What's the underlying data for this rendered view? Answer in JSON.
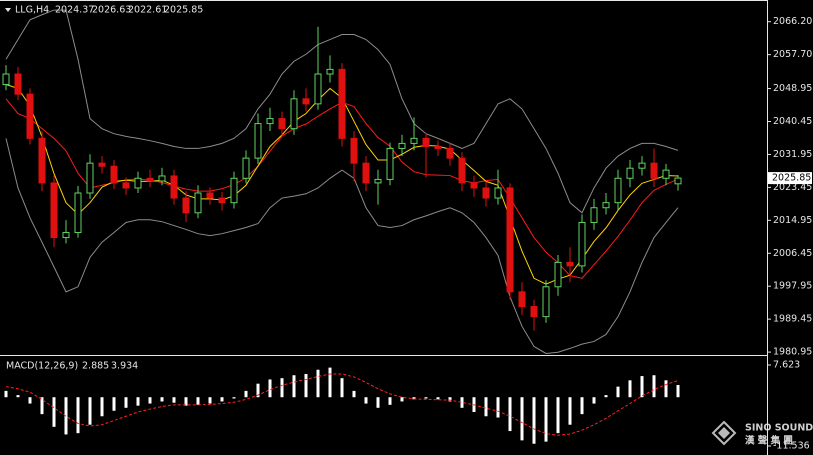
{
  "header": {
    "symbol": "LLG,H4"
  },
  "watermark": {
    "brand": "SINO SOUND",
    "chinese": "漢 聲 集 團"
  },
  "chart_data": [
    {
      "type": "candlestick",
      "up_color": "#5fd35f",
      "down_color": "#e01010",
      "open": [
        2050.0,
        2052.7,
        2047.5,
        2036.1,
        2024.6,
        2010.5,
        2011.8,
        2022.0,
        2029.7,
        2028.9,
        2024.6,
        2023.3,
        2025.8,
        2025.1,
        2026.4,
        2020.7,
        2016.9,
        2022.0,
        2020.7,
        2019.5,
        2025.8,
        2031.0,
        2039.9,
        2041.2,
        2038.6,
        2046.3,
        2045.0,
        2052.7,
        2053.9,
        2036.1,
        2029.7,
        2024.6,
        2025.5,
        2033.5,
        2034.8,
        2036.1,
        2034.0,
        2033.5,
        2031.0,
        2024.6,
        2023.3,
        2020.7,
        2023.3,
        1996.5,
        1992.7,
        1990.1,
        1997.8,
        2004.1,
        2003.2,
        2014.4,
        2018.2,
        2019.5,
        2025.8,
        2028.4,
        2029.7,
        2025.8,
        2024.37
      ],
      "high": [
        2055.0,
        2054.5,
        2049.0,
        2038.0,
        2026.5,
        2015.0,
        2023.8,
        2032.0,
        2031.5,
        2030.5,
        2026.0,
        2027.5,
        2028.0,
        2028.5,
        2028.0,
        2022.5,
        2024.0,
        2023.5,
        2022.3,
        2027.5,
        2033.0,
        2042.5,
        2044.0,
        2043.0,
        2048.5,
        2049.0,
        2064.9,
        2057.5,
        2055.5,
        2038.0,
        2031.5,
        2028.0,
        2035.0,
        2037.0,
        2041.5,
        2037.5,
        2035.5,
        2035.0,
        2032.5,
        2026.5,
        2025.0,
        2028.0,
        2024.5,
        1999.0,
        1994.5,
        1999.5,
        2006.0,
        2008.0,
        2016.5,
        2020.5,
        2022.0,
        2028.0,
        2030.5,
        2031.5,
        2033.5,
        2029.5,
        2026.63
      ],
      "low": [
        2048.5,
        2046.0,
        2034.5,
        2022.5,
        2008.0,
        2009.0,
        2010.5,
        2020.5,
        2027.0,
        2023.0,
        2021.5,
        2022.0,
        2023.5,
        2024.0,
        2019.0,
        2014.5,
        2015.5,
        2019.0,
        2017.5,
        2018.0,
        2024.5,
        2029.5,
        2038.0,
        2036.5,
        2037.0,
        2043.0,
        2043.5,
        2050.5,
        2034.0,
        2025.0,
        2022.5,
        2019.0,
        2024.0,
        2031.5,
        2033.0,
        2026.0,
        2031.5,
        2029.0,
        2022.5,
        2021.0,
        2018.5,
        2019.0,
        1994.5,
        1990.5,
        1986.5,
        1988.5,
        1995.5,
        1999.0,
        2001.5,
        2012.5,
        2016.5,
        2017.5,
        2023.5,
        2026.5,
        2023.5,
        2024.0,
        2022.61
      ],
      "close": [
        2052.7,
        2047.5,
        2036.1,
        2024.6,
        2010.5,
        2011.8,
        2022.0,
        2029.7,
        2028.9,
        2024.6,
        2023.3,
        2025.8,
        2025.1,
        2026.4,
        2020.7,
        2016.9,
        2022.0,
        2020.7,
        2019.5,
        2025.8,
        2031.0,
        2039.9,
        2041.2,
        2038.6,
        2046.3,
        2045.0,
        2052.7,
        2053.9,
        2036.1,
        2029.7,
        2024.6,
        2025.5,
        2033.5,
        2034.8,
        2036.1,
        2034.0,
        2033.5,
        2031.0,
        2024.6,
        2023.3,
        2020.7,
        2023.3,
        1996.5,
        1992.7,
        1990.1,
        1997.8,
        2004.1,
        2003.2,
        2014.4,
        2018.2,
        2019.5,
        2025.8,
        2028.4,
        2029.7,
        2025.8,
        2027.9,
        2025.85
      ],
      "lines": [
        {
          "color": "#8c8c8c",
          "values": [
            2056.5,
            2061.6,
            2066.7,
            2068.0,
            2069.2,
            2069.2,
            2056.5,
            2041.2,
            2038.6,
            2037.3,
            2036.6,
            2036.1,
            2035.5,
            2034.8,
            2034.0,
            2033.5,
            2033.5,
            2034.0,
            2034.8,
            2036.1,
            2038.6,
            2043.7,
            2047.5,
            2052.7,
            2056.0,
            2057.8,
            2060.3,
            2061.6,
            2062.9,
            2062.9,
            2061.6,
            2059.0,
            2055.2,
            2046.3,
            2039.9,
            2037.3,
            2036.1,
            2034.8,
            2033.5,
            2034.8,
            2039.9,
            2045.0,
            2046.3,
            2043.7,
            2038.6,
            2033.5,
            2027.1,
            2019.5,
            2016.9,
            2023.3,
            2028.4,
            2031.5,
            2033.5,
            2034.8,
            2034.8,
            2034.0,
            2033.0
          ]
        },
        {
          "color": "#8c8c8c",
          "values": [
            2036.1,
            2023.3,
            2015.6,
            2009.3,
            2002.9,
            1996.5,
            1997.8,
            2005.4,
            2009.3,
            2011.8,
            2014.4,
            2015.1,
            2015.1,
            2014.6,
            2013.6,
            2012.6,
            2011.5,
            2011.0,
            2011.5,
            2012.3,
            2013.1,
            2014.1,
            2018.2,
            2020.7,
            2021.2,
            2021.8,
            2023.3,
            2025.8,
            2027.9,
            2025.8,
            2018.2,
            2013.6,
            2013.1,
            2013.6,
            2015.1,
            2016.1,
            2017.2,
            2018.2,
            2016.9,
            2014.4,
            2010.5,
            2005.9,
            1995.2,
            1987.6,
            1982.4,
            1980.6,
            1980.9,
            1981.9,
            1983.0,
            1983.7,
            1985.5,
            1990.1,
            1996.5,
            2004.1,
            2010.5,
            2014.4,
            2018.2
          ]
        },
        {
          "color": "#ff1a1a",
          "values": [
            2046.3,
            2042.5,
            2041.2,
            2038.6,
            2036.1,
            2032.9,
            2027.1,
            2023.3,
            2024.0,
            2024.6,
            2025.4,
            2025.6,
            2025.3,
            2024.7,
            2023.8,
            2023.0,
            2022.5,
            2022.5,
            2023.1,
            2024.2,
            2025.9,
            2028.9,
            2032.8,
            2036.7,
            2038.6,
            2039.8,
            2041.8,
            2043.7,
            2045.4,
            2044.3,
            2039.9,
            2036.3,
            2034.1,
            2030.0,
            2027.5,
            2026.7,
            2026.6,
            2026.5,
            2025.2,
            2024.6,
            2025.2,
            2025.5,
            2020.7,
            2015.6,
            2010.5,
            2006.7,
            2004.0,
            2000.7,
            2000.0,
            2003.5,
            2007.0,
            2010.8,
            2015.0,
            2019.5,
            2022.7,
            2024.2,
            2025.6
          ]
        },
        {
          "color": "#ffd200",
          "values": [
            2050.0,
            2049.0,
            2044.5,
            2036.5,
            2027.0,
            2019.5,
            2016.5,
            2019.5,
            2023.5,
            2025.0,
            2025.3,
            2025.0,
            2025.0,
            2025.3,
            2024.0,
            2021.5,
            2020.5,
            2020.5,
            2020.2,
            2021.3,
            2024.0,
            2029.0,
            2034.0,
            2037.0,
            2040.5,
            2042.5,
            2046.0,
            2049.0,
            2046.5,
            2040.5,
            2034.5,
            2030.5,
            2030.5,
            2032.0,
            2033.8,
            2034.3,
            2034.1,
            2033.3,
            2030.5,
            2027.8,
            2025.0,
            2024.0,
            2015.5,
            2007.0,
            2000.0,
            1998.5,
            1999.8,
            2000.8,
            2005.0,
            2009.5,
            2013.0,
            2017.5,
            2021.5,
            2024.5,
            2025.5,
            2026.5,
            2026.4
          ]
        }
      ],
      "ylim": [
        1980.2,
        2071.8
      ],
      "yticks": [
        {
          "value": 2066.2,
          "label": "2066.20"
        },
        {
          "value": 2057.7,
          "label": "2057.70"
        },
        2048.95,
        2040.45,
        2031.95,
        2023.45,
        2014.95,
        2006.45,
        1997.95,
        1989.45,
        2066.2,
        1980.95
      ]
    },
    {
      "type": "macd",
      "title": "MACD(12,26,9)",
      "histogram": {
        "color": "#ffffff",
        "values": [
          1.5,
          0.5,
          -1.5,
          -4.0,
          -7.0,
          -8.8,
          -8.5,
          -6.5,
          -4.5,
          -3.2,
          -2.5,
          -2.0,
          -1.5,
          -1.0,
          -1.3,
          -2.0,
          -1.8,
          -1.5,
          -1.0,
          -0.3,
          1.5,
          3.2,
          4.2,
          4.5,
          5.2,
          5.5,
          6.5,
          7.0,
          4.5,
          1.5,
          -1.5,
          -2.5,
          -1.8,
          -1.0,
          -0.5,
          -0.3,
          -0.5,
          -1.0,
          -2.5,
          -3.5,
          -4.5,
          -4.8,
          -8.0,
          -10.2,
          -11.0,
          -10.5,
          -8.5,
          -6.5,
          -4.0,
          -1.5,
          0.5,
          2.5,
          4.0,
          5.0,
          5.2,
          4.0,
          2.885
        ]
      },
      "signal": {
        "color": "#ff2020",
        "values": [
          2.5,
          2.0,
          1.2,
          -0.5,
          -2.5,
          -4.5,
          -6.2,
          -6.8,
          -6.5,
          -5.5,
          -4.5,
          -3.5,
          -2.8,
          -2.2,
          -1.8,
          -1.8,
          -1.8,
          -1.7,
          -1.5,
          -1.2,
          -0.5,
          0.5,
          1.8,
          2.8,
          3.6,
          4.2,
          4.9,
          5.5,
          5.5,
          4.8,
          3.5,
          2.0,
          0.8,
          0.0,
          -0.4,
          -0.5,
          -0.6,
          -0.7,
          -1.2,
          -1.8,
          -2.6,
          -3.3,
          -4.5,
          -6.0,
          -7.5,
          -8.6,
          -9.0,
          -8.7,
          -7.8,
          -6.5,
          -5.0,
          -3.2,
          -1.5,
          0.3,
          1.8,
          3.0,
          3.934
        ]
      },
      "ylim": [
        -13.66,
        9.51
      ],
      "yticks": [
        7.623,
        -11.536
      ]
    }
  ]
}
